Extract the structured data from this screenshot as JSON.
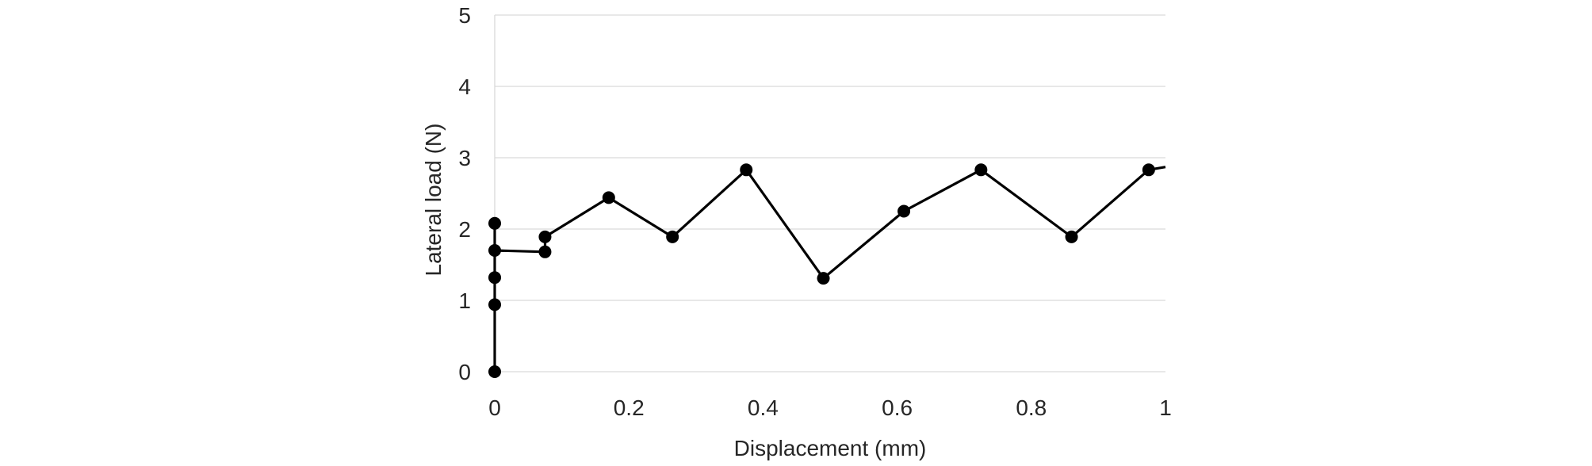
{
  "chart_data": {
    "type": "scatter",
    "title": "",
    "xlabel": "Displacement (mm)",
    "ylabel": "Lateral load (N)",
    "xlim": [
      0,
      1
    ],
    "ylim": [
      0,
      5
    ],
    "x_ticks": [
      "0",
      "0.2",
      "0.4",
      "0.6",
      "0.8",
      "1"
    ],
    "y_ticks": [
      "0",
      "1",
      "2",
      "3",
      "4",
      "5"
    ],
    "grid": true,
    "legend": "none",
    "series": [
      {
        "color": "#000000",
        "markers": true,
        "x": [
          0.0,
          0.0,
          0.0,
          0.0,
          0.0,
          0.075,
          0.075,
          0.17,
          0.265,
          0.375,
          0.49,
          0.61,
          0.725,
          0.86,
          0.975
        ],
        "y": [
          0.0,
          0.94,
          1.32,
          2.08,
          1.7,
          1.68,
          1.89,
          2.44,
          1.89,
          2.83,
          1.31,
          2.25,
          2.83,
          1.89,
          2.83
        ],
        "line_tail": {
          "x": 1.0,
          "y": 2.87
        }
      }
    ]
  }
}
